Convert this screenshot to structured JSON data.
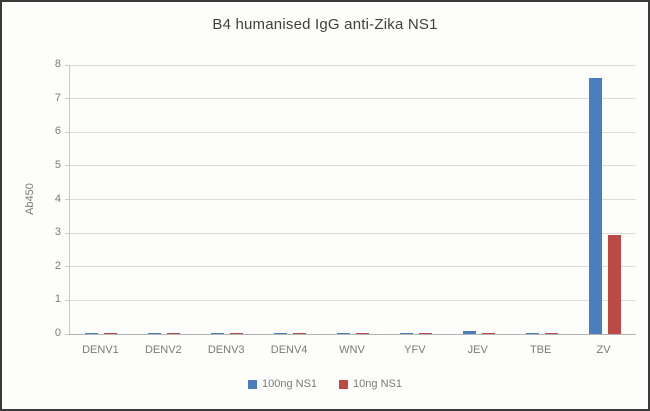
{
  "chart_data": {
    "type": "bar",
    "title": "B4 humanised IgG anti-Zika NS1",
    "xlabel": "",
    "ylabel": "Ab450",
    "categories": [
      "DENV1",
      "DENV2",
      "DENV3",
      "DENV4",
      "WNV",
      "YFV",
      "JEV",
      "TBE",
      "ZV"
    ],
    "series": [
      {
        "name": "100ng NS1",
        "color": "#4A7EBE",
        "values": [
          0.03,
          0.03,
          0.03,
          0.03,
          0.03,
          0.03,
          0.1,
          0.04,
          7.6
        ]
      },
      {
        "name": "10ng NS1",
        "color": "#BB4A47",
        "values": [
          0.03,
          0.03,
          0.03,
          0.03,
          0.03,
          0.03,
          0.03,
          0.03,
          2.95
        ]
      }
    ],
    "ylim": [
      0,
      8
    ],
    "yticks": [
      0,
      1,
      2,
      3,
      4,
      5,
      6,
      7,
      8
    ],
    "grid": true,
    "legend_position": "bottom"
  },
  "colors": {
    "background": "#fdfdfc",
    "frame_border": "#3a3a3a",
    "gridline": "#dcdcdc",
    "axis_text": "#7a7a7a",
    "title_text": "#3f3f3f",
    "series_blue": "#4A7EBE",
    "series_red": "#BB4A47"
  }
}
